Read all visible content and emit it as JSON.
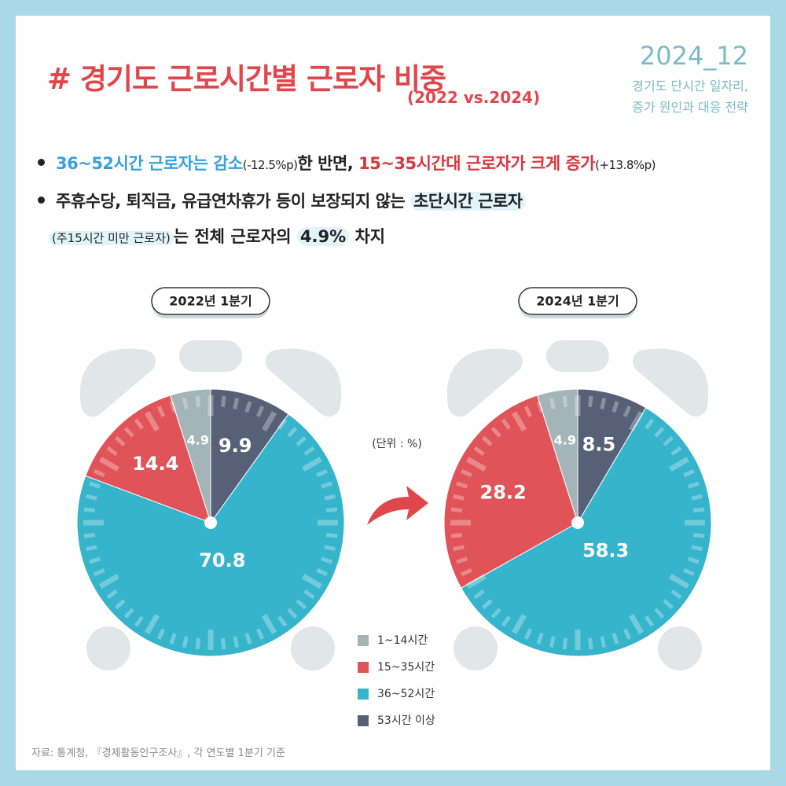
{
  "header": {
    "title": "# 경기도 근로시간별 근로자 비중",
    "subtitle": "(2022 vs.2024)",
    "date": "2024_12",
    "report": [
      "경기도 단시간 일자리,",
      "증가 원인과 대응 전략"
    ]
  },
  "bullets": [
    [
      "36~52시간 근로자는 감소",
      "(-12.5%p)",
      "한 반면, ",
      "15~35시간대 근로자가 크게 증가",
      "(+13.8%p)"
    ],
    [
      "주휴수당, 퇴직금, 유급연차휴가 등이 보장되지 않는 ",
      "초단시간 근로자",
      "(주15시간 미만 근로자)",
      "는 전체 근로자의 ",
      "4.9%",
      " 차지"
    ]
  ],
  "unit": "(단위 : %)",
  "source": "자료: 통계청, 『경제활동인구조사』, 각 연도별 1분기 기준",
  "chart_data": [
    {
      "type": "pie",
      "title": "2022년 1분기",
      "categories": [
        "1~14시간",
        "15~35시간",
        "36~52시간",
        "53시간 이상"
      ],
      "values": [
        4.9,
        14.4,
        70.8,
        9.9
      ],
      "colors": [
        "#a3b5b8",
        "#e05358",
        "#36b4cc",
        "#566178"
      ]
    },
    {
      "type": "pie",
      "title": "2024년 1분기",
      "values": [
        4.9,
        28.2,
        58.3,
        8.5
      ],
      "colors": [
        "#a3b5b8",
        "#e05358",
        "#36b4cc",
        "#566178"
      ]
    }
  ]
}
